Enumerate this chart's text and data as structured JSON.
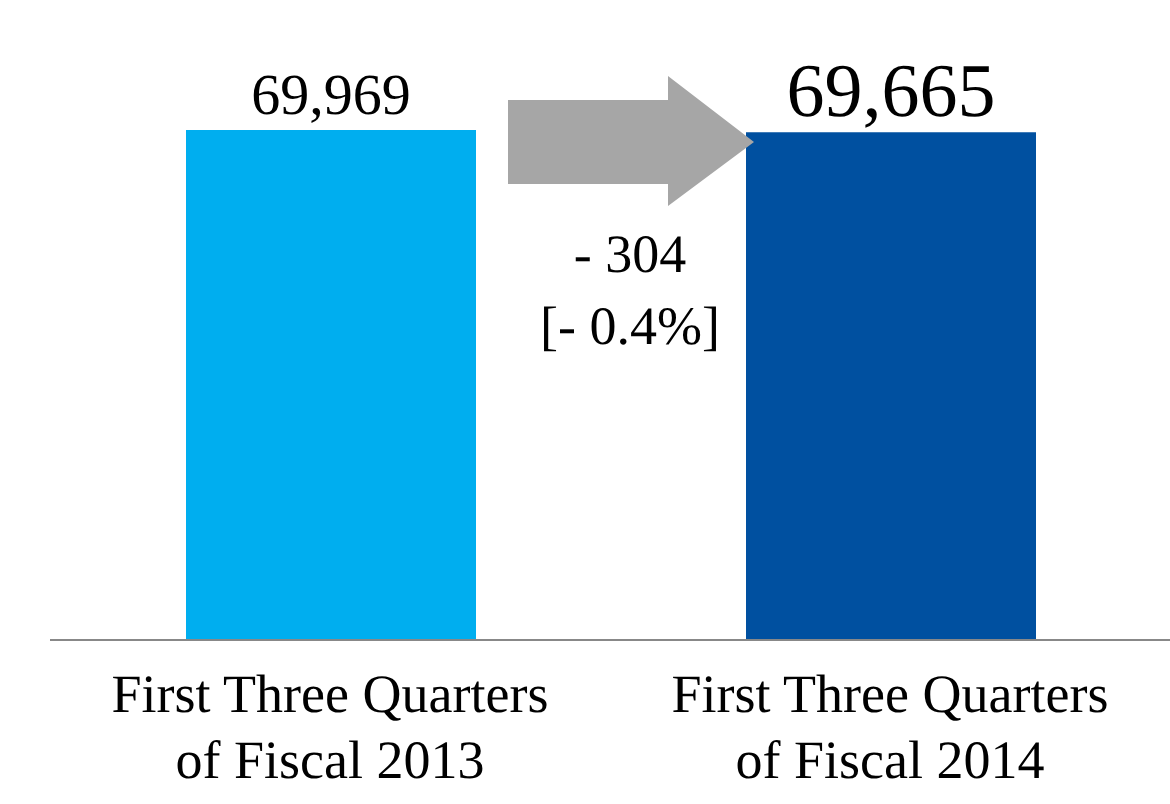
{
  "chart_data": {
    "type": "bar",
    "categories": [
      "First Three Quarters of Fiscal 2013",
      "First Three Quarters of Fiscal 2014"
    ],
    "values": [
      69969,
      69665
    ],
    "colors": [
      "#00aeef",
      "#0050a0"
    ],
    "value_labels": [
      "69,969",
      "69,665"
    ],
    "annotations": [
      "- 304",
      "[- 0.4%]"
    ]
  }
}
